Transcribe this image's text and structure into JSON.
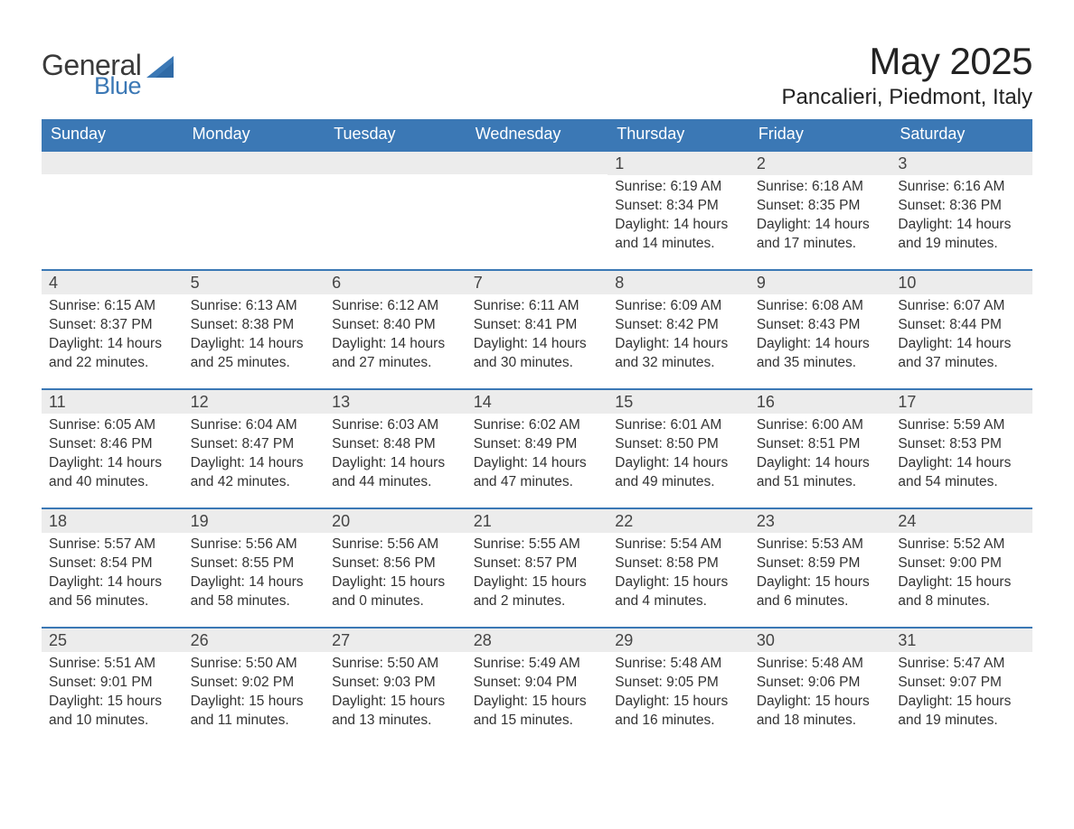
{
  "brand": {
    "word1": "General",
    "word2": "Blue",
    "text_color": "#3a3a3a",
    "accent_color": "#3b78b5"
  },
  "title": "May 2025",
  "location": "Pancalieri, Piedmont, Italy",
  "theme": {
    "header_bg": "#3b78b5",
    "header_text": "#ffffff",
    "daynum_bg": "#ececec",
    "row_divider": "#3b78b5",
    "body_text": "#333333",
    "page_bg": "#ffffff",
    "title_fontsize": 42,
    "location_fontsize": 24,
    "dayheader_fontsize": 18,
    "cell_fontsize": 15.5
  },
  "day_headers": [
    "Sunday",
    "Monday",
    "Tuesday",
    "Wednesday",
    "Thursday",
    "Friday",
    "Saturday"
  ],
  "labels": {
    "sunrise": "Sunrise:",
    "sunset": "Sunset:",
    "daylight": "Daylight:"
  },
  "weeks": [
    [
      null,
      null,
      null,
      null,
      {
        "n": "1",
        "sunrise": "6:19 AM",
        "sunset": "8:34 PM",
        "daylight": "14 hours and 14 minutes."
      },
      {
        "n": "2",
        "sunrise": "6:18 AM",
        "sunset": "8:35 PM",
        "daylight": "14 hours and 17 minutes."
      },
      {
        "n": "3",
        "sunrise": "6:16 AM",
        "sunset": "8:36 PM",
        "daylight": "14 hours and 19 minutes."
      }
    ],
    [
      {
        "n": "4",
        "sunrise": "6:15 AM",
        "sunset": "8:37 PM",
        "daylight": "14 hours and 22 minutes."
      },
      {
        "n": "5",
        "sunrise": "6:13 AM",
        "sunset": "8:38 PM",
        "daylight": "14 hours and 25 minutes."
      },
      {
        "n": "6",
        "sunrise": "6:12 AM",
        "sunset": "8:40 PM",
        "daylight": "14 hours and 27 minutes."
      },
      {
        "n": "7",
        "sunrise": "6:11 AM",
        "sunset": "8:41 PM",
        "daylight": "14 hours and 30 minutes."
      },
      {
        "n": "8",
        "sunrise": "6:09 AM",
        "sunset": "8:42 PM",
        "daylight": "14 hours and 32 minutes."
      },
      {
        "n": "9",
        "sunrise": "6:08 AM",
        "sunset": "8:43 PM",
        "daylight": "14 hours and 35 minutes."
      },
      {
        "n": "10",
        "sunrise": "6:07 AM",
        "sunset": "8:44 PM",
        "daylight": "14 hours and 37 minutes."
      }
    ],
    [
      {
        "n": "11",
        "sunrise": "6:05 AM",
        "sunset": "8:46 PM",
        "daylight": "14 hours and 40 minutes."
      },
      {
        "n": "12",
        "sunrise": "6:04 AM",
        "sunset": "8:47 PM",
        "daylight": "14 hours and 42 minutes."
      },
      {
        "n": "13",
        "sunrise": "6:03 AM",
        "sunset": "8:48 PM",
        "daylight": "14 hours and 44 minutes."
      },
      {
        "n": "14",
        "sunrise": "6:02 AM",
        "sunset": "8:49 PM",
        "daylight": "14 hours and 47 minutes."
      },
      {
        "n": "15",
        "sunrise": "6:01 AM",
        "sunset": "8:50 PM",
        "daylight": "14 hours and 49 minutes."
      },
      {
        "n": "16",
        "sunrise": "6:00 AM",
        "sunset": "8:51 PM",
        "daylight": "14 hours and 51 minutes."
      },
      {
        "n": "17",
        "sunrise": "5:59 AM",
        "sunset": "8:53 PM",
        "daylight": "14 hours and 54 minutes."
      }
    ],
    [
      {
        "n": "18",
        "sunrise": "5:57 AM",
        "sunset": "8:54 PM",
        "daylight": "14 hours and 56 minutes."
      },
      {
        "n": "19",
        "sunrise": "5:56 AM",
        "sunset": "8:55 PM",
        "daylight": "14 hours and 58 minutes."
      },
      {
        "n": "20",
        "sunrise": "5:56 AM",
        "sunset": "8:56 PM",
        "daylight": "15 hours and 0 minutes."
      },
      {
        "n": "21",
        "sunrise": "5:55 AM",
        "sunset": "8:57 PM",
        "daylight": "15 hours and 2 minutes."
      },
      {
        "n": "22",
        "sunrise": "5:54 AM",
        "sunset": "8:58 PM",
        "daylight": "15 hours and 4 minutes."
      },
      {
        "n": "23",
        "sunrise": "5:53 AM",
        "sunset": "8:59 PM",
        "daylight": "15 hours and 6 minutes."
      },
      {
        "n": "24",
        "sunrise": "5:52 AM",
        "sunset": "9:00 PM",
        "daylight": "15 hours and 8 minutes."
      }
    ],
    [
      {
        "n": "25",
        "sunrise": "5:51 AM",
        "sunset": "9:01 PM",
        "daylight": "15 hours and 10 minutes."
      },
      {
        "n": "26",
        "sunrise": "5:50 AM",
        "sunset": "9:02 PM",
        "daylight": "15 hours and 11 minutes."
      },
      {
        "n": "27",
        "sunrise": "5:50 AM",
        "sunset": "9:03 PM",
        "daylight": "15 hours and 13 minutes."
      },
      {
        "n": "28",
        "sunrise": "5:49 AM",
        "sunset": "9:04 PM",
        "daylight": "15 hours and 15 minutes."
      },
      {
        "n": "29",
        "sunrise": "5:48 AM",
        "sunset": "9:05 PM",
        "daylight": "15 hours and 16 minutes."
      },
      {
        "n": "30",
        "sunrise": "5:48 AM",
        "sunset": "9:06 PM",
        "daylight": "15 hours and 18 minutes."
      },
      {
        "n": "31",
        "sunrise": "5:47 AM",
        "sunset": "9:07 PM",
        "daylight": "15 hours and 19 minutes."
      }
    ]
  ]
}
